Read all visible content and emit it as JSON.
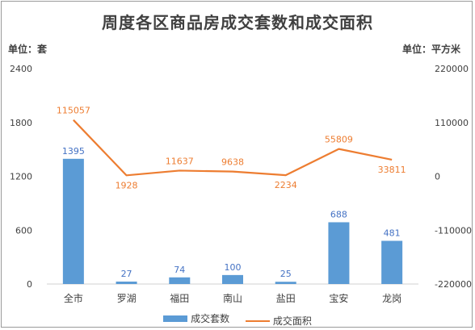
{
  "title": "周度各区商品房成交套数和成交面积",
  "unit_left": "单位：套",
  "unit_right": "单位：平方米",
  "colors": {
    "bar": "#5b9bd5",
    "line": "#ed7d31",
    "bar_label": "#4472c4",
    "line_label": "#ed7d31",
    "axis_text": "#404040"
  },
  "chart_data": {
    "type": "bar",
    "categories": [
      "全市",
      "罗湖",
      "福田",
      "南山",
      "盐田",
      "宝安",
      "龙岗"
    ],
    "series": [
      {
        "name": "成交套数",
        "type": "bar",
        "axis": "left",
        "values": [
          1395,
          27,
          74,
          100,
          25,
          688,
          481
        ]
      },
      {
        "name": "成交面积",
        "type": "line",
        "axis": "right",
        "values": [
          115057,
          1928,
          11637,
          9638,
          2234,
          55809,
          33811
        ]
      }
    ],
    "y_left": {
      "ticks": [
        "0",
        "600",
        "1200",
        "1800",
        "2400"
      ],
      "range": [
        0,
        2400
      ]
    },
    "y_right": {
      "ticks": [
        "-220000",
        "-110000",
        "0",
        "110000",
        "220000"
      ],
      "range": [
        -220000,
        220000
      ]
    },
    "grid": false,
    "legend_position": "bottom"
  }
}
